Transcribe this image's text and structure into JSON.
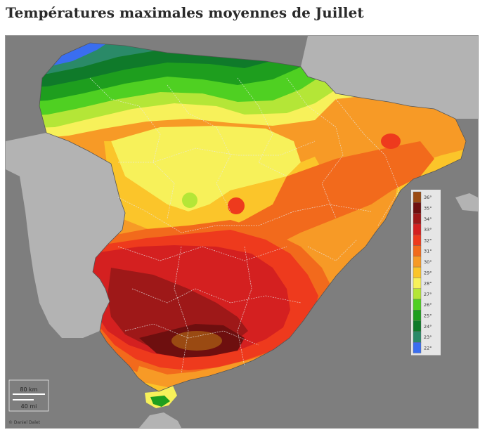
{
  "title": "Températures maximales moyennes de Juillet",
  "legend": [
    {
      "label": "36°",
      "color": "#9a4a12"
    },
    {
      "label": "35°",
      "color": "#6e0f0f"
    },
    {
      "label": "34°",
      "color": "#9e1818"
    },
    {
      "label": "33°",
      "color": "#d42020"
    },
    {
      "label": "32°",
      "color": "#ee3a1d"
    },
    {
      "label": "31°",
      "color": "#f26a1c"
    },
    {
      "label": "30°",
      "color": "#f79a26"
    },
    {
      "label": "29°",
      "color": "#fbc52a"
    },
    {
      "label": "28°",
      "color": "#f7f15a"
    },
    {
      "label": "27°",
      "color": "#b4e637"
    },
    {
      "label": "26°",
      "color": "#4fd022"
    },
    {
      "label": "25°",
      "color": "#1e9e1e"
    },
    {
      "label": "24°",
      "color": "#0f7a2a"
    },
    {
      "label": "23°",
      "color": "#2a8a68"
    },
    {
      "label": "22°",
      "color": "#3a6ef0"
    }
  ],
  "scale": {
    "km": "80 km",
    "mi": "40 mi"
  },
  "credit": "© Daniel Dalet"
}
